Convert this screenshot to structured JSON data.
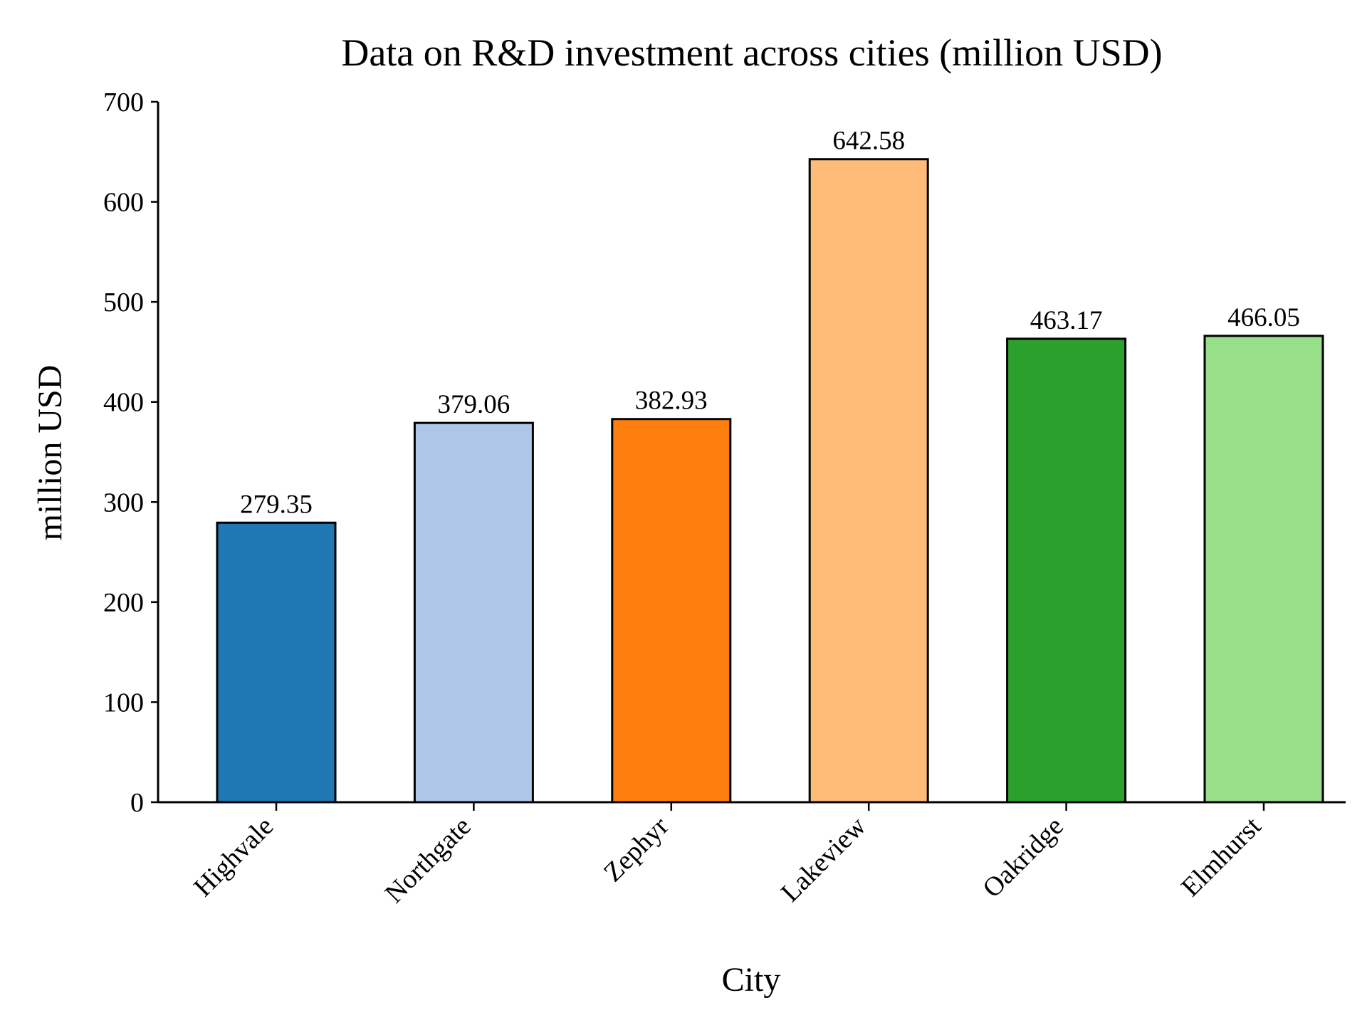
{
  "chart_data": {
    "type": "bar",
    "title": "Data on R&D investment across cities (million USD)",
    "xlabel": "City",
    "ylabel": "million USD",
    "categories": [
      "Highvale",
      "Northgate",
      "Zephyr",
      "Lakeview",
      "Oakridge",
      "Elmhurst"
    ],
    "values": [
      279.35,
      379.06,
      382.93,
      642.58,
      463.17,
      466.05
    ],
    "value_labels": [
      "279.35",
      "379.06",
      "382.93",
      "642.58",
      "463.17",
      "466.05"
    ],
    "colors": [
      "#1f77b4",
      "#aec7e8",
      "#ff7f0e",
      "#ffbb78",
      "#2ca02c",
      "#98df8a"
    ],
    "ylim": [
      0,
      700
    ],
    "yticks": [
      0,
      100,
      200,
      300,
      400,
      500,
      600,
      700
    ],
    "ytick_labels": [
      "0",
      "100",
      "200",
      "300",
      "400",
      "500",
      "600",
      "700"
    ],
    "grid": false,
    "legend": "none"
  }
}
